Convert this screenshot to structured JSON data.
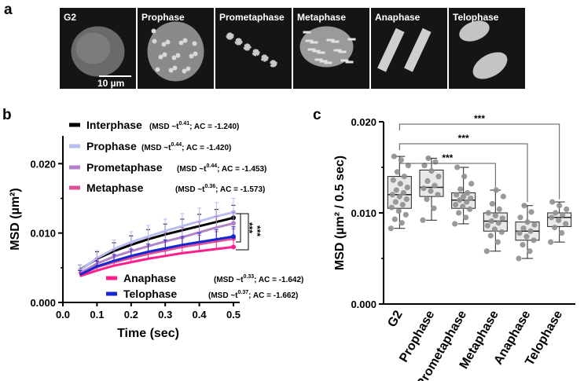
{
  "panel_a": {
    "letter": "a",
    "phases": [
      "G2",
      "Prophase",
      "Prometaphase",
      "Metaphase",
      "Anaphase",
      "Telophase"
    ],
    "scale_bar_label": "10 µm"
  },
  "chart_data": [
    {
      "panel": "b",
      "type": "line",
      "xlabel": "Time (sec)",
      "ylabel": "MSD (µm²)",
      "xlim": [
        0,
        0.5
      ],
      "ylim": [
        0,
        0.024
      ],
      "x_ticks": [
        "0.0",
        "0.1",
        "0.2",
        "0.3",
        "0.4",
        "0.5"
      ],
      "y_ticks": [
        "0.000",
        "0.010",
        "0.020"
      ],
      "x": [
        0.05,
        0.1,
        0.15,
        0.2,
        0.25,
        0.3,
        0.35,
        0.4,
        0.45,
        0.5
      ],
      "series": [
        {
          "name": "Interphase",
          "exponent": "0.41",
          "ac": "-1.240",
          "color": "#000000",
          "values": [
            0.0047,
            0.0063,
            0.0074,
            0.0083,
            0.0091,
            0.0098,
            0.0104,
            0.011,
            0.0116,
            0.0122
          ],
          "err": [
            0.0007,
            0.001,
            0.0012,
            0.0013,
            0.0014,
            0.0015,
            0.0016,
            0.0017,
            0.0018,
            0.0018
          ]
        },
        {
          "name": "Prophase",
          "exponent": "0.44",
          "ac": "-1.420",
          "color": "#b9bdf0",
          "values": [
            0.0046,
            0.0064,
            0.0077,
            0.0087,
            0.0095,
            0.0103,
            0.011,
            0.0117,
            0.0124,
            0.013
          ],
          "err": [
            0.0008,
            0.0011,
            0.0013,
            0.0015,
            0.0016,
            0.0017,
            0.0018,
            0.0019,
            0.002,
            0.002
          ]
        },
        {
          "name": "Prometaphase",
          "exponent": "0.44",
          "ac": "-1.453",
          "color": "#b083c9",
          "values": [
            0.0042,
            0.0056,
            0.0066,
            0.0074,
            0.0081,
            0.0088,
            0.0094,
            0.0101,
            0.0108,
            0.0114
          ],
          "err": [
            0.0006,
            0.0008,
            0.001,
            0.0011,
            0.0012,
            0.0013,
            0.0014,
            0.0015,
            0.0016,
            0.0016
          ]
        },
        {
          "name": "Metaphase",
          "exponent": "0.36",
          "ac": "-1.573",
          "color": "#e0509a",
          "values": [
            0.004,
            0.0051,
            0.0058,
            0.0064,
            0.007,
            0.0075,
            0.008,
            0.0084,
            0.0088,
            0.0092
          ],
          "err": [
            0.0006,
            0.0008,
            0.0009,
            0.001,
            0.0011,
            0.0012,
            0.0012,
            0.0013,
            0.0014,
            0.0014
          ]
        },
        {
          "name": "Anaphase",
          "exponent": "0.33",
          "ac": "-1.642",
          "color": "#ff1f8c",
          "values": [
            0.0038,
            0.0046,
            0.0053,
            0.0058,
            0.0063,
            0.0067,
            0.0071,
            0.0074,
            0.0077,
            0.008
          ],
          "err": [
            0.0005,
            0.0007,
            0.0008,
            0.0009,
            0.001,
            0.0011,
            0.0011,
            0.0012,
            0.0012,
            0.0013
          ]
        },
        {
          "name": "Telophase",
          "exponent": "0.37",
          "ac": "-1.662",
          "color": "#1428d0",
          "values": [
            0.004,
            0.0052,
            0.006,
            0.0067,
            0.0073,
            0.0078,
            0.0083,
            0.0087,
            0.0091,
            0.0095
          ],
          "err": [
            0.0006,
            0.0008,
            0.0009,
            0.001,
            0.0011,
            0.0012,
            0.0012,
            0.0013,
            0.0014,
            0.0014
          ]
        }
      ],
      "legend_prefix": "(MSD ~t",
      "legend_mid": "; AC = ",
      "legend_suffix": ")",
      "significance": [
        "***",
        "***"
      ]
    },
    {
      "panel": "c",
      "type": "box",
      "ylabel": "MSD (µm² / 0.5 sec)",
      "ylim": [
        0,
        0.02
      ],
      "y_ticks": [
        "0.000",
        "0.010",
        "0.020"
      ],
      "categories": [
        "G2",
        "Prophase",
        "Prometaphase",
        "Metaphase",
        "Anaphase",
        "Telophase"
      ],
      "boxes": [
        {
          "min": 0.0083,
          "q1": 0.0105,
          "median": 0.012,
          "q3": 0.014,
          "max": 0.0162,
          "points": [
            0.0083,
            0.0089,
            0.0093,
            0.0098,
            0.0102,
            0.0106,
            0.0109,
            0.0112,
            0.0115,
            0.0118,
            0.012,
            0.0122,
            0.0125,
            0.0128,
            0.0132,
            0.0136,
            0.014,
            0.0145,
            0.0152,
            0.0158,
            0.0162
          ]
        },
        {
          "min": 0.0092,
          "q1": 0.0118,
          "median": 0.0128,
          "q3": 0.0147,
          "max": 0.016,
          "points": [
            0.0092,
            0.0105,
            0.0115,
            0.012,
            0.0124,
            0.0127,
            0.013,
            0.0135,
            0.014,
            0.0146,
            0.0152,
            0.0156,
            0.016
          ]
        },
        {
          "min": 0.0088,
          "q1": 0.0105,
          "median": 0.0114,
          "q3": 0.0122,
          "max": 0.015,
          "points": [
            0.0088,
            0.0095,
            0.01,
            0.0104,
            0.0107,
            0.0109,
            0.0112,
            0.0114,
            0.0116,
            0.0118,
            0.012,
            0.0122,
            0.0126,
            0.0132,
            0.014,
            0.015
          ]
        },
        {
          "min": 0.0058,
          "q1": 0.008,
          "median": 0.0091,
          "q3": 0.01,
          "max": 0.0125,
          "points": [
            0.0058,
            0.0068,
            0.0075,
            0.0079,
            0.0082,
            0.0086,
            0.0089,
            0.0091,
            0.0094,
            0.0097,
            0.01,
            0.0104,
            0.011,
            0.0118,
            0.0125
          ]
        },
        {
          "min": 0.005,
          "q1": 0.007,
          "median": 0.008,
          "q3": 0.009,
          "max": 0.0108,
          "points": [
            0.005,
            0.0058,
            0.0065,
            0.007,
            0.0074,
            0.0078,
            0.008,
            0.0083,
            0.0087,
            0.009,
            0.0095,
            0.0101,
            0.0108
          ]
        },
        {
          "min": 0.0068,
          "q1": 0.0085,
          "median": 0.0095,
          "q3": 0.01,
          "max": 0.0112,
          "points": [
            0.0068,
            0.0078,
            0.0084,
            0.0088,
            0.0092,
            0.0095,
            0.0098,
            0.01,
            0.0104,
            0.0108,
            0.0112
          ]
        }
      ],
      "significance": [
        {
          "from": "G2",
          "to": "Metaphase",
          "label": "***"
        },
        {
          "from": "G2",
          "to": "Anaphase",
          "label": "***"
        },
        {
          "from": "G2",
          "to": "Telophase",
          "label": "***"
        }
      ]
    }
  ]
}
